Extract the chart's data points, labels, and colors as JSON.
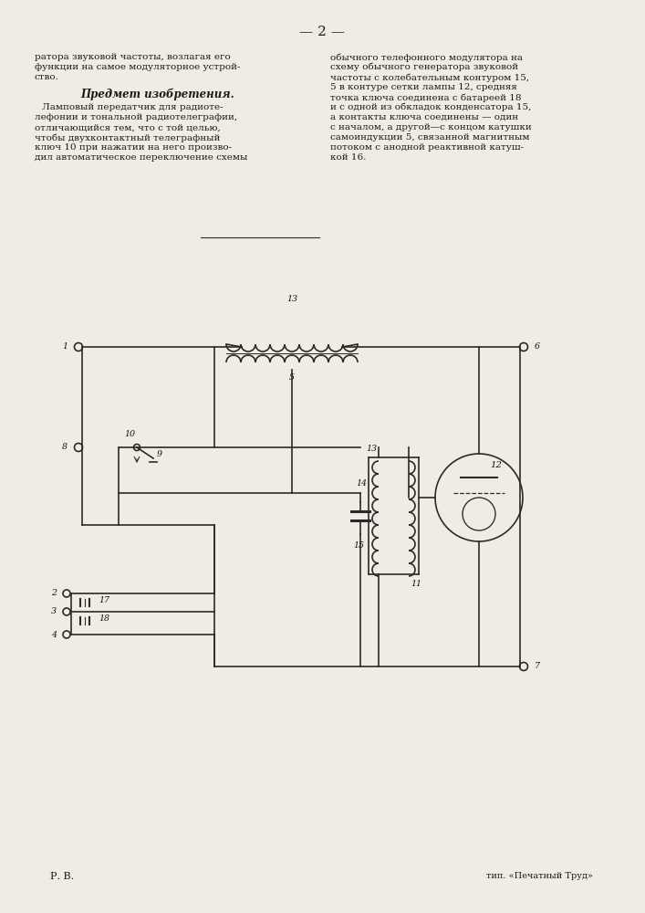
{
  "bg_color": "#f0ece4",
  "page_num": "2",
  "text_col1_lines": [
    "ратора звуковой частоты, возлагая его",
    "функции на самое модуляторное устрой-",
    "ство."
  ],
  "heading": "Предмет изобретения.",
  "text_col1_body": [
    "Ламповый передатчик для радиоте-",
    "лефонии и тональной радиотелеграфии,",
    "отличающийся тем, что с той целью,",
    "чтобы двухконтактный телеграфный",
    "ключ 10 при нажатии на него произво-",
    "дил автоматическое переключение схемы"
  ],
  "text_col2_lines": [
    "обычного телефонного модулятора на",
    "схему обычного генератора звуковой",
    "частоты с колебательным контуром 15,",
    "5 в контуре сетки лампы 12, средняя",
    "точка ключа соединена с батареей 18",
    "и с одной из обкладок конденсатора 15,",
    "а контакты ключа соединены — один",
    "с началом, а другой—с концом катушки",
    "самоиндукции 5, связанной магнитным",
    "потоком с анодной реактивной катуш-",
    "кой 16."
  ],
  "footer_left": "Р. В.",
  "footer_right": "тип. «Печатный Труд»"
}
